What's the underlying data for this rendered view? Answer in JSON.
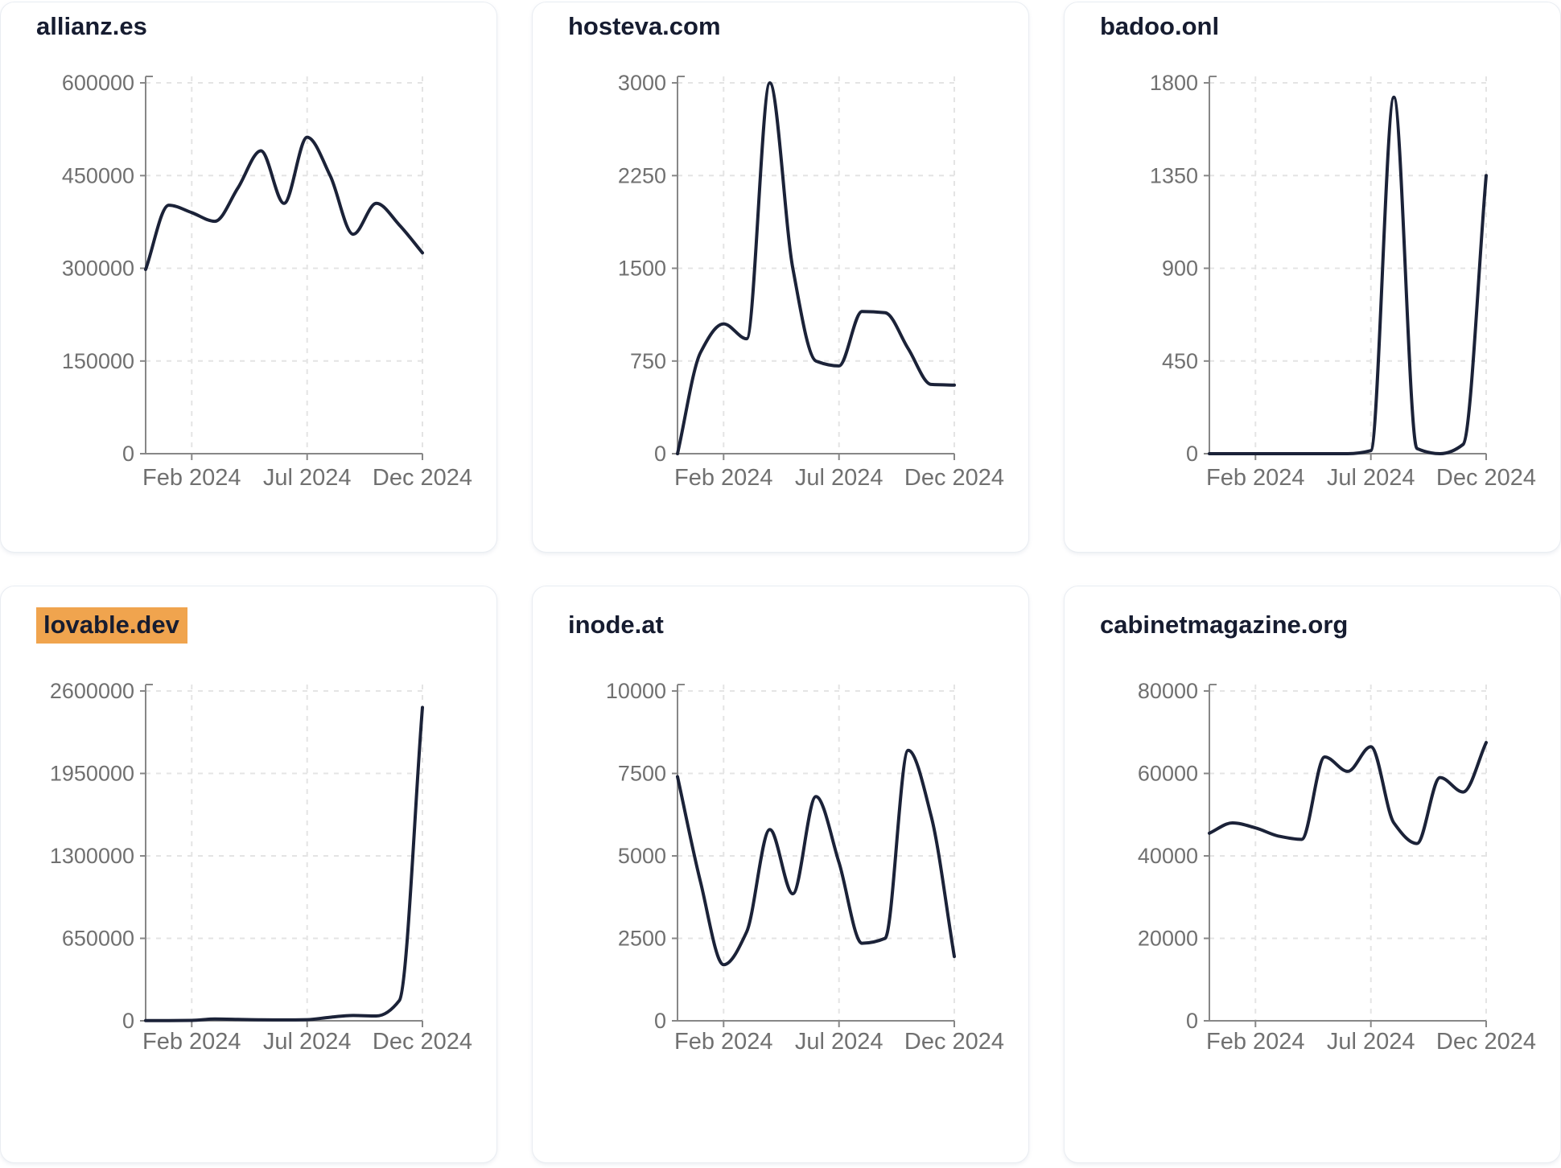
{
  "style": {
    "page_bg": "#ffffff",
    "card_bg": "#ffffff",
    "card_border": "#e9edf2",
    "title_color": "#161c30",
    "line_color": "#1b2238",
    "axis_color": "#878787",
    "tick_label_color": "#707070",
    "grid_color": "#e4e4e4",
    "highlight_bg": "#f0a44e"
  },
  "chart_data": [
    {
      "type": "line",
      "title": "allianz.es",
      "title_highlighted": false,
      "x": [
        "Dec 2023",
        "Jan 2024",
        "Feb 2024",
        "Mar 2024",
        "Apr 2024",
        "May 2024",
        "Jun 2024",
        "Jul 2024",
        "Aug 2024",
        "Sep 2024",
        "Oct 2024",
        "Nov 2024",
        "Dec 2024"
      ],
      "values": [
        298000,
        402000,
        390000,
        376000,
        430000,
        490000,
        405000,
        512000,
        450000,
        355000,
        405000,
        370000,
        325000
      ],
      "ylim": [
        0,
        600000
      ],
      "y_ticks": [
        0,
        150000,
        300000,
        450000,
        600000
      ],
      "x_tick_labels": [
        "Feb 2024",
        "Jul 2024",
        "Dec 2024"
      ],
      "x_tick_positions": [
        2,
        7,
        12
      ],
      "grid": true,
      "legend": false
    },
    {
      "type": "line",
      "title": "hosteva.com",
      "title_highlighted": false,
      "x": [
        "Dec 2023",
        "Jan 2024",
        "Feb 2024",
        "Mar 2024",
        "Apr 2024",
        "May 2024",
        "Jun 2024",
        "Jul 2024",
        "Aug 2024",
        "Sep 2024",
        "Oct 2024",
        "Nov 2024",
        "Dec 2024"
      ],
      "values": [
        0,
        820,
        1050,
        930,
        3000,
        1500,
        750,
        710,
        1150,
        1140,
        850,
        560,
        555
      ],
      "ylim": [
        0,
        3000
      ],
      "y_ticks": [
        0,
        750,
        1500,
        2250,
        3000
      ],
      "x_tick_labels": [
        "Feb 2024",
        "Jul 2024",
        "Dec 2024"
      ],
      "x_tick_positions": [
        2,
        7,
        12
      ],
      "grid": true,
      "legend": false
    },
    {
      "type": "line",
      "title": "badoo.onl",
      "title_highlighted": false,
      "x": [
        "Dec 2023",
        "Jan 2024",
        "Feb 2024",
        "Mar 2024",
        "Apr 2024",
        "May 2024",
        "Jun 2024",
        "Jul 2024",
        "Aug 2024",
        "Sep 2024",
        "Oct 2024",
        "Nov 2024",
        "Dec 2024"
      ],
      "values": [
        0,
        0,
        0,
        0,
        0,
        0,
        0,
        15,
        1730,
        25,
        0,
        45,
        1350
      ],
      "ylim": [
        0,
        1800
      ],
      "y_ticks": [
        0,
        450,
        900,
        1350,
        1800
      ],
      "x_tick_labels": [
        "Feb 2024",
        "Jul 2024",
        "Dec 2024"
      ],
      "x_tick_positions": [
        2,
        7,
        12
      ],
      "grid": true,
      "legend": false
    },
    {
      "type": "line",
      "title": "lovable.dev",
      "title_highlighted": true,
      "x": [
        "Dec 2023",
        "Jan 2024",
        "Feb 2024",
        "Mar 2024",
        "Apr 2024",
        "May 2024",
        "Jun 2024",
        "Jul 2024",
        "Aug 2024",
        "Sep 2024",
        "Oct 2024",
        "Nov 2024",
        "Dec 2024"
      ],
      "values": [
        1000,
        2000,
        3000,
        14000,
        11000,
        8000,
        7000,
        9000,
        28000,
        42000,
        38000,
        160000,
        2470000
      ],
      "ylim": [
        0,
        2600000
      ],
      "y_ticks": [
        0,
        650000,
        1300000,
        1950000,
        2600000
      ],
      "x_tick_labels": [
        "Feb 2024",
        "Jul 2024",
        "Dec 2024"
      ],
      "x_tick_positions": [
        2,
        7,
        12
      ],
      "grid": true,
      "legend": false
    },
    {
      "type": "line",
      "title": "inode.at",
      "title_highlighted": false,
      "x": [
        "Dec 2023",
        "Jan 2024",
        "Feb 2024",
        "Mar 2024",
        "Apr 2024",
        "May 2024",
        "Jun 2024",
        "Jul 2024",
        "Aug 2024",
        "Sep 2024",
        "Oct 2024",
        "Nov 2024",
        "Dec 2024"
      ],
      "values": [
        7400,
        4200,
        1700,
        2700,
        5800,
        3850,
        6800,
        4800,
        2350,
        2500,
        8200,
        6200,
        1950
      ],
      "ylim": [
        0,
        10000
      ],
      "y_ticks": [
        0,
        2500,
        5000,
        7500,
        10000
      ],
      "x_tick_labels": [
        "Feb 2024",
        "Jul 2024",
        "Dec 2024"
      ],
      "x_tick_positions": [
        2,
        7,
        12
      ],
      "grid": true,
      "legend": false
    },
    {
      "type": "line",
      "title": "cabinetmagazine.org",
      "title_highlighted": false,
      "x": [
        "Dec 2023",
        "Jan 2024",
        "Feb 2024",
        "Mar 2024",
        "Apr 2024",
        "May 2024",
        "Jun 2024",
        "Jul 2024",
        "Aug 2024",
        "Sep 2024",
        "Oct 2024",
        "Nov 2024",
        "Dec 2024"
      ],
      "values": [
        45500,
        48000,
        46800,
        44800,
        44000,
        64000,
        60500,
        66500,
        48000,
        43000,
        59000,
        55500,
        67500
      ],
      "ylim": [
        0,
        80000
      ],
      "y_ticks": [
        0,
        20000,
        40000,
        60000,
        80000
      ],
      "x_tick_labels": [
        "Feb 2024",
        "Jul 2024",
        "Dec 2024"
      ],
      "x_tick_positions": [
        2,
        7,
        12
      ],
      "grid": true,
      "legend": false
    }
  ]
}
